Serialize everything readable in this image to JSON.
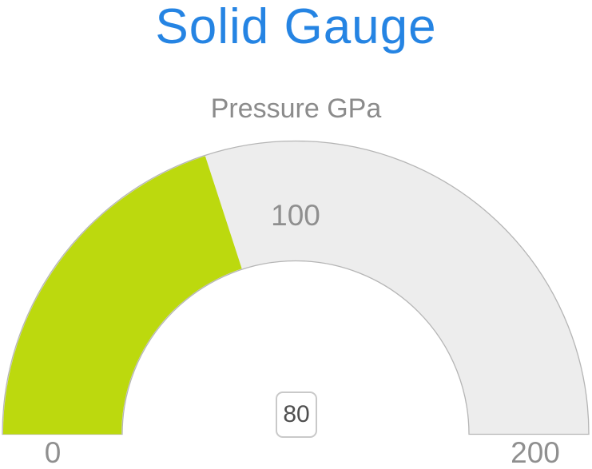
{
  "header": {
    "title": "Solid Gauge",
    "subtitle": "Pressure GPa"
  },
  "gauge": {
    "value_label": "80",
    "axis_labels": {
      "min": "0",
      "mid": "100",
      "max": "200"
    },
    "colors": {
      "title": "#2584e3",
      "subtitle": "#8b8b8b",
      "axis_label": "#8f8f8f",
      "value_fill": "#bcd90e",
      "track_fill": "#ededed",
      "track_border": "#b5b5b5",
      "value_text": "#4f4f4f",
      "value_box_border": "#c9c9c9",
      "value_box_fill": "#ffffff"
    }
  },
  "chart_data": {
    "type": "gauge",
    "shape": "half-donut",
    "title": "Solid Gauge",
    "subtitle": "Pressure GPa",
    "series": [
      {
        "name": "Pressure",
        "value": 80,
        "units": "GPa"
      }
    ],
    "min": 0,
    "max": 200,
    "tick_labels": [
      "0",
      "100",
      "200"
    ],
    "value_label": "80",
    "start_angle_deg": 180,
    "end_angle_deg": 0,
    "inner_radius_ratio": 0.59,
    "legend": false,
    "grid": false
  }
}
